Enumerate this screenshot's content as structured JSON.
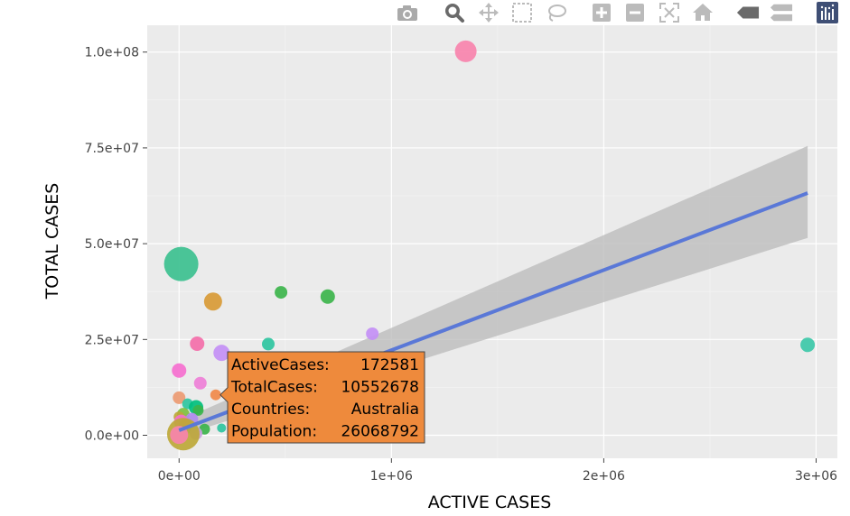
{
  "toolbar": {
    "buttons": [
      {
        "name": "camera-icon",
        "title": "Download plot as a png"
      },
      {
        "name": "zoom-icon",
        "title": "Zoom"
      },
      {
        "name": "pan-icon",
        "title": "Pan"
      },
      {
        "name": "box-select-icon",
        "title": "Box Select"
      },
      {
        "name": "lasso-select-icon",
        "title": "Lasso Select"
      },
      {
        "name": "zoom-in-icon",
        "title": "Zoom in"
      },
      {
        "name": "zoom-out-icon",
        "title": "Zoom out"
      },
      {
        "name": "autoscale-icon",
        "title": "Autoscale"
      },
      {
        "name": "reset-axes-icon",
        "title": "Reset axes"
      },
      {
        "name": "hover-closest-icon",
        "title": "Show closest data on hover"
      },
      {
        "name": "hover-compare-icon",
        "title": "Compare data on hover"
      },
      {
        "name": "plotly-logo-icon",
        "title": "Produced with Plotly"
      }
    ]
  },
  "chart_data": {
    "type": "scatter",
    "xlabel": "ACTIVE CASES",
    "ylabel": "TOTAL CASES",
    "xlim": [
      -150000,
      3100000
    ],
    "ylim": [
      -6000000,
      107000000
    ],
    "xticks": [
      0,
      1000000,
      2000000,
      3000000
    ],
    "xtick_labels": [
      "0e+00",
      "1e+06",
      "2e+06",
      "3e+06"
    ],
    "yticks": [
      0,
      25000000,
      50000000,
      75000000,
      100000000
    ],
    "ytick_labels": [
      "0.0e+00",
      "2.5e+07",
      "5.0e+07",
      "7.5e+07",
      "1.0e+08"
    ],
    "grid": true,
    "background": "#ebebeb",
    "points": [
      {
        "x": 1350000,
        "y": 100200000,
        "size": 12,
        "color": "#f783ac"
      },
      {
        "x": 10000,
        "y": 44700000,
        "size": 19,
        "color": "#3cc08f"
      },
      {
        "x": 160000,
        "y": 34900000,
        "size": 10,
        "color": "#d89a36"
      },
      {
        "x": 480000,
        "y": 37300000,
        "size": 7,
        "color": "#3cb44b"
      },
      {
        "x": 700000,
        "y": 36200000,
        "size": 8,
        "color": "#3cb44b"
      },
      {
        "x": 85000,
        "y": 23900000,
        "size": 8,
        "color": "#f36ea9"
      },
      {
        "x": 200000,
        "y": 21500000,
        "size": 9,
        "color": "#c38ff5"
      },
      {
        "x": 420000,
        "y": 23800000,
        "size": 7,
        "color": "#2ec4a0"
      },
      {
        "x": 910000,
        "y": 26500000,
        "size": 7,
        "color": "#c38ff5"
      },
      {
        "x": 2960000,
        "y": 23600000,
        "size": 8,
        "color": "#3cc8a8"
      },
      {
        "x": 0,
        "y": 16900000,
        "size": 8,
        "color": "#f56fcf"
      },
      {
        "x": 100000,
        "y": 13600000,
        "size": 7,
        "color": "#ee7fd7"
      },
      {
        "x": 172581,
        "y": 10552678,
        "size": 6,
        "color": "#f0894a"
      },
      {
        "x": 0,
        "y": 9800000,
        "size": 7,
        "color": "#ec9a72"
      },
      {
        "x": 40000,
        "y": 8200000,
        "size": 6,
        "color": "#2ec4a0"
      },
      {
        "x": 80000,
        "y": 7300000,
        "size": 8,
        "color": "#00bf7d"
      },
      {
        "x": 90000,
        "y": 6500000,
        "size": 6,
        "color": "#3cb44b"
      },
      {
        "x": 20000,
        "y": 5500000,
        "size": 7,
        "color": "#7fbf3f"
      },
      {
        "x": 60000,
        "y": 4200000,
        "size": 7,
        "color": "#b08cf0"
      },
      {
        "x": 0,
        "y": 4800000,
        "size": 6,
        "color": "#bda838"
      },
      {
        "x": 10000,
        "y": 3500000,
        "size": 8,
        "color": "#f56fcf"
      },
      {
        "x": 30000,
        "y": 2600000,
        "size": 7,
        "color": "#e8755a"
      },
      {
        "x": 60000,
        "y": 1800000,
        "size": 6,
        "color": "#46c4d8"
      },
      {
        "x": 120000,
        "y": 1600000,
        "size": 6,
        "color": "#3cb44b"
      },
      {
        "x": 200000,
        "y": 1900000,
        "size": 5,
        "color": "#2ec4a0"
      },
      {
        "x": 80000,
        "y": 500000,
        "size": 7,
        "color": "#c9a0dc"
      },
      {
        "x": 20000,
        "y": 300000,
        "size": 18,
        "color": "#bda838"
      },
      {
        "x": 0,
        "y": 100000,
        "size": 10,
        "color": "#f783ac"
      }
    ],
    "regression": {
      "x": [
        0,
        2960000
      ],
      "y": [
        1300000,
        63200000
      ],
      "ci_lower": [
        -200000,
        51500000
      ],
      "ci_upper": [
        3800000,
        75500000
      ],
      "line_color": "#5a78d7",
      "band_color": "#bdbdbd"
    },
    "tooltip": {
      "lines": [
        [
          "ActiveCases:",
          "172581"
        ],
        [
          "TotalCases:",
          "10552678"
        ],
        [
          "Countries:",
          "Australia"
        ],
        [
          "Population:",
          "26068792"
        ]
      ],
      "background": "#ee8a3c",
      "border": "#444444"
    }
  }
}
